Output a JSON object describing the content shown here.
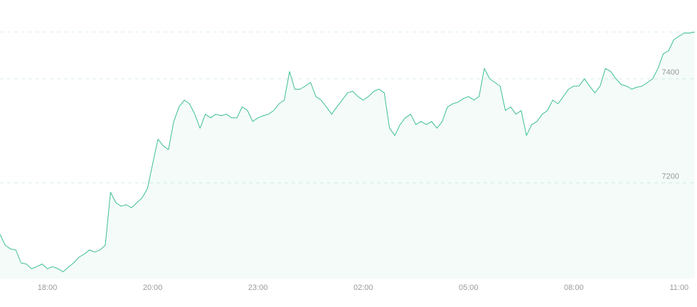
{
  "chart_data": {
    "type": "area",
    "x": [
      0,
      1,
      2,
      3,
      4,
      5,
      6,
      7,
      8,
      9,
      10,
      11,
      12,
      13,
      14,
      15,
      16,
      17,
      18,
      19,
      20,
      21,
      22,
      23,
      24,
      25,
      26,
      27,
      28,
      29,
      30,
      31,
      32,
      33,
      34,
      35,
      36,
      37,
      38,
      39,
      40,
      41,
      42,
      43,
      44,
      45,
      46,
      47,
      48,
      49,
      50,
      51,
      52,
      53,
      54,
      55,
      56,
      57,
      58,
      59,
      60,
      61,
      62,
      63,
      64,
      65,
      66,
      67,
      68,
      69,
      70,
      71,
      72,
      73,
      74,
      75,
      76,
      77,
      78,
      79,
      80,
      81,
      82,
      83,
      84,
      85,
      86,
      87,
      88,
      89,
      90,
      91,
      92,
      93,
      94,
      95,
      96,
      97,
      98,
      99,
      100,
      101,
      102,
      103,
      104,
      105,
      106,
      107,
      108,
      109,
      110,
      111,
      112,
      113,
      114,
      115,
      116,
      117,
      118,
      119,
      120,
      121,
      122,
      123,
      124,
      125,
      126,
      127,
      128,
      129,
      130,
      131,
      132
    ],
    "values": [
      7101,
      7080,
      7073,
      7071,
      7046,
      7044,
      7035,
      7039,
      7044,
      7035,
      7039,
      7035,
      7029,
      7038,
      7046,
      7057,
      7063,
      7071,
      7067,
      7071,
      7080,
      7182,
      7162,
      7155,
      7158,
      7152,
      7162,
      7171,
      7189,
      7237,
      7284,
      7271,
      7264,
      7318,
      7346,
      7359,
      7352,
      7332,
      7305,
      7332,
      7325,
      7332,
      7329,
      7332,
      7325,
      7325,
      7346,
      7339,
      7318,
      7325,
      7329,
      7332,
      7339,
      7352,
      7359,
      7414,
      7380,
      7380,
      7386,
      7393,
      7366,
      7359,
      7346,
      7332,
      7346,
      7359,
      7373,
      7376,
      7366,
      7359,
      7366,
      7376,
      7380,
      7373,
      7305,
      7291,
      7312,
      7325,
      7332,
      7312,
      7318,
      7312,
      7318,
      7305,
      7318,
      7346,
      7352,
      7355,
      7362,
      7366,
      7359,
      7366,
      7420,
      7400,
      7393,
      7386,
      7339,
      7346,
      7332,
      7339,
      7291,
      7312,
      7318,
      7332,
      7339,
      7359,
      7352,
      7366,
      7380,
      7386,
      7386,
      7400,
      7386,
      7373,
      7386,
      7420,
      7414,
      7400,
      7389,
      7386,
      7380,
      7384,
      7386,
      7393,
      7400,
      7420,
      7448,
      7454,
      7475,
      7482,
      7488,
      7488,
      7490
    ],
    "color": "#3dbf91",
    "xlim": [
      0,
      132.4
    ],
    "xticks": [
      {
        "value": 9,
        "label": "18:00"
      },
      {
        "value": 29,
        "label": "20:00"
      },
      {
        "value": 49,
        "label": "23:00"
      },
      {
        "value": 69,
        "label": "02:00"
      },
      {
        "value": 89,
        "label": "05:00"
      },
      {
        "value": 109,
        "label": "08:00"
      },
      {
        "value": 129,
        "label": "11:00"
      }
    ],
    "ylim": [
      7016,
      7490
    ],
    "yticks": [
      7200,
      7400
    ],
    "grid": true
  }
}
